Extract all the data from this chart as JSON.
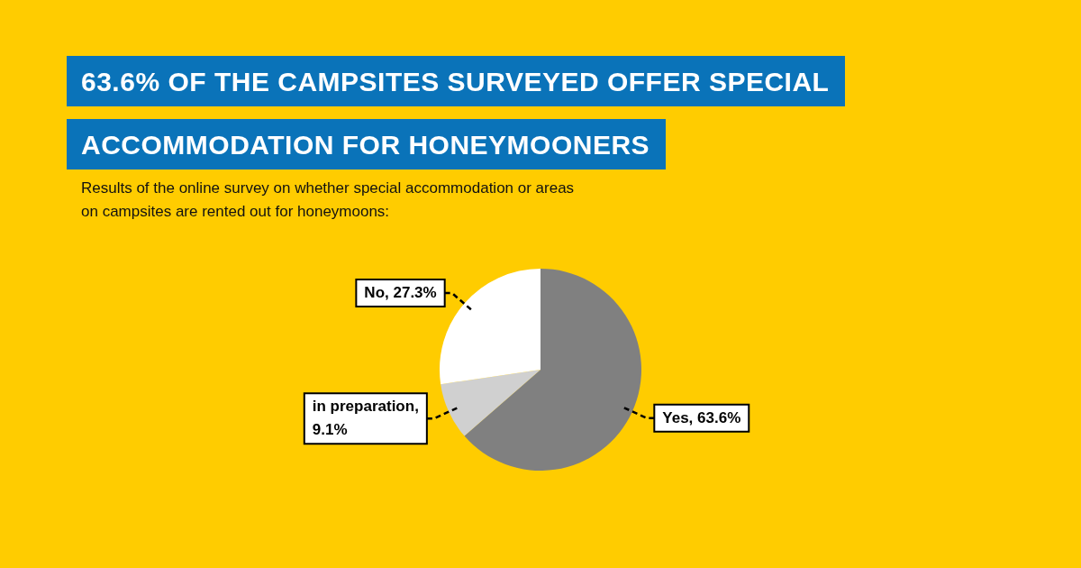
{
  "chart_data": {
    "type": "pie",
    "title": "63.6% OF THE CAMPSITES SURVEYED OFFER SPECIAL ACCOMMODATION FOR HONEYMOONERS",
    "subtitle": "Results of the online survey on whether special accommodation or areas on campsites are rented out for honeymoons:",
    "categories": [
      "Yes, 63.6%",
      "in preparation, 9.1%",
      "No, 27.3%"
    ],
    "values": [
      63.6,
      9.1,
      27.3
    ],
    "colors": [
      "#808080",
      "#d0d0d0",
      "#ffffff"
    ],
    "legend": false
  }
}
